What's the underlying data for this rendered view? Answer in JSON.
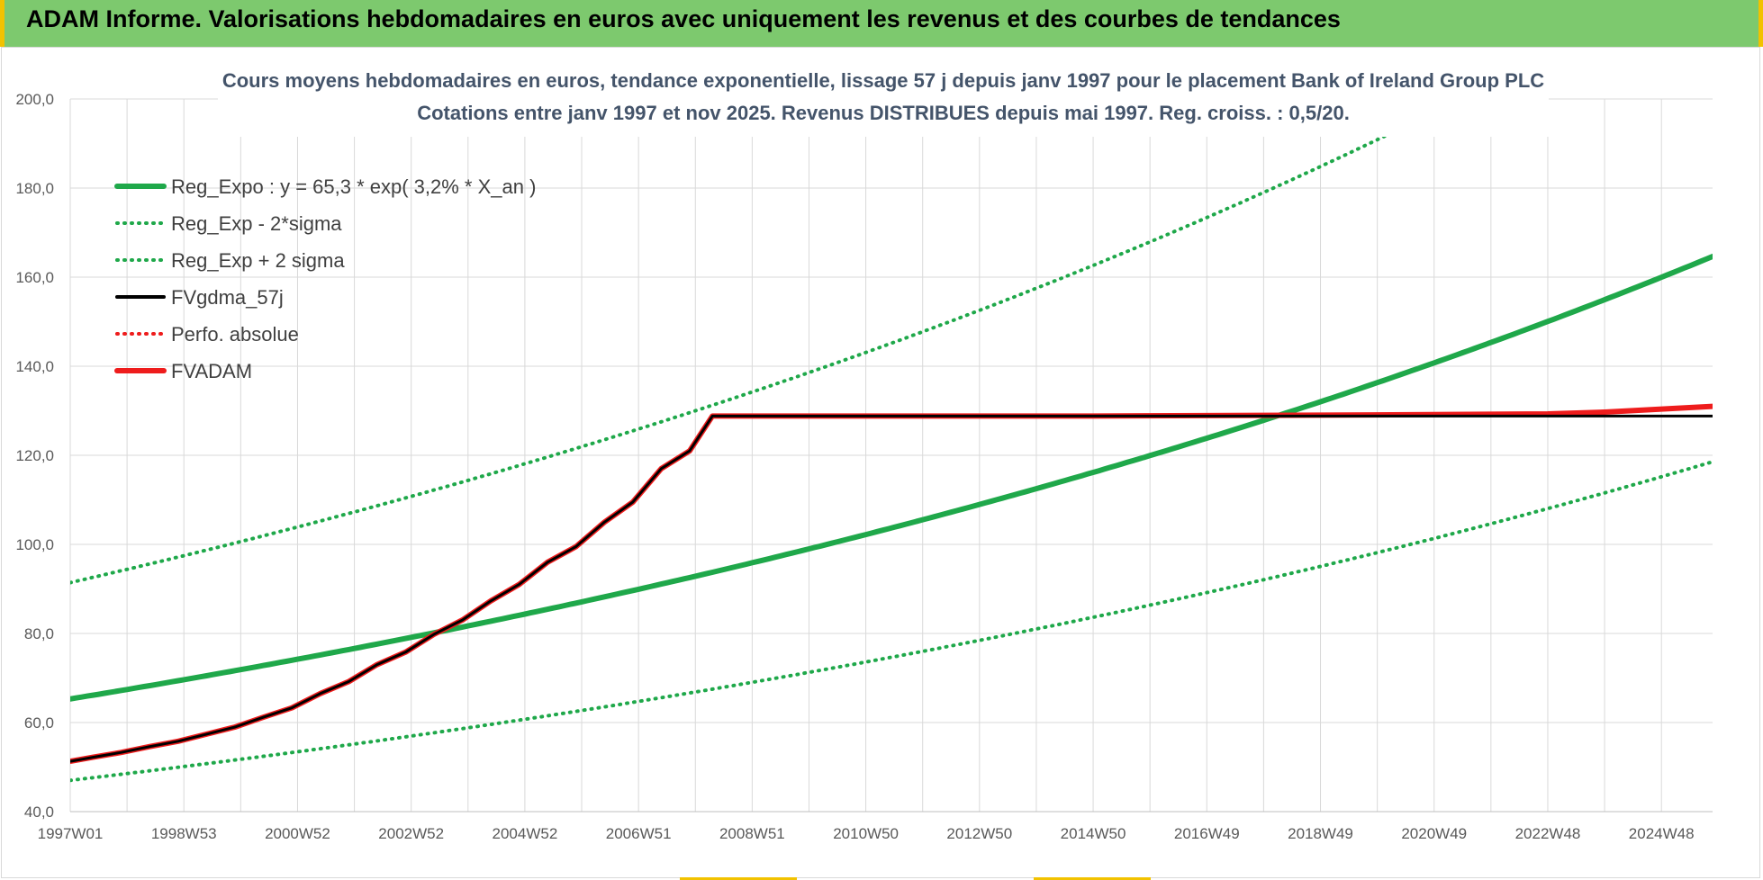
{
  "header": {
    "title": "ADAM Informe. Valorisations hebdomadaires en euros avec uniquement les revenus et des courbes de tendances"
  },
  "colors": {
    "banner": "#7dc96e",
    "trend_green": "#1fa84a",
    "fv_black": "#000000",
    "adam_red": "#ee1c1c",
    "grid": "#d9d9d9",
    "axis_text": "#595959",
    "title_text": "#44546a"
  },
  "chart_data": {
    "type": "line",
    "title": "Cours moyens hebdomadaires en euros, tendance exponentielle, lissage 57 j depuis janv 1997 pour le placement Bank of Ireland Group PLC",
    "subtitle": "Cotations entre janv 1997 et nov 2025. Revenus DISTRIBUES depuis mai 1997. Reg. croiss. : 0,5/20.",
    "xlabel": "",
    "ylabel": "",
    "x_range": [
      1997.0,
      2025.9
    ],
    "ylim": [
      40,
      200
    ],
    "y_ticks": [
      "40,0",
      "60,0",
      "80,0",
      "100,0",
      "120,0",
      "140,0",
      "160,0",
      "180,0",
      "200,0"
    ],
    "x_ticks": [
      "1997W01",
      "1998W53",
      "2000W52",
      "2002W52",
      "2004W52",
      "2006W51",
      "2008W51",
      "2010W50",
      "2012W50",
      "2014W50",
      "2016W49",
      "2018W49",
      "2020W49",
      "2022W48",
      "2024W48"
    ],
    "x_tick_years": [
      1997.0,
      1999.0,
      2001.0,
      2003.0,
      2005.0,
      2007.0,
      2009.0,
      2011.0,
      2013.0,
      2015.0,
      2017.0,
      2019.0,
      2021.0,
      2023.0,
      2025.0
    ],
    "grid": true,
    "legend_position": "top-left",
    "regression": {
      "a": 65.3,
      "rate_pct": 3.2,
      "lower_factor": 0.72,
      "upper_factor": 1.4
    },
    "series": [
      {
        "name": "Reg_Expo : y = 65,3 * exp( 3,2% *  X_an )",
        "style": "solid",
        "color": "#1fa84a",
        "kind": "trend"
      },
      {
        "name": "Reg_Exp - 2*sigma",
        "style": "dotted",
        "color": "#1fa84a",
        "kind": "lower"
      },
      {
        "name": "Reg_Exp + 2 sigma",
        "style": "dotted",
        "color": "#1fa84a",
        "kind": "upper"
      },
      {
        "name": "FVgdma_57j",
        "style": "solid",
        "color": "#000000",
        "kind": "fv",
        "x": [
          1997.0,
          1997.4,
          1997.9,
          1998.4,
          1998.9,
          1999.4,
          1999.9,
          2000.4,
          2000.9,
          2001.4,
          2001.9,
          2002.4,
          2002.9,
          2003.4,
          2003.9,
          2004.4,
          2004.9,
          2005.4,
          2005.9,
          2006.4,
          2006.9,
          2007.4,
          2007.9,
          2008.3,
          2025.9
        ],
        "values": [
          51.3,
          52.2,
          53.3,
          54.6,
          55.8,
          57.4,
          59.0,
          61.2,
          63.3,
          66.5,
          69.2,
          73.0,
          75.8,
          79.8,
          83.0,
          87.3,
          91.0,
          96.0,
          99.5,
          105.0,
          109.5,
          117.0,
          121.0,
          128.8,
          128.8
        ]
      },
      {
        "name": "Perfo. absolue",
        "style": "dotted",
        "color": "#ee1c1c",
        "kind": "hidden"
      },
      {
        "name": "FVADAM",
        "style": "solid",
        "color": "#ee1c1c",
        "kind": "adam",
        "x": [
          1997.0,
          1997.4,
          1997.9,
          1998.4,
          1998.9,
          1999.4,
          1999.9,
          2000.4,
          2000.9,
          2001.4,
          2001.9,
          2002.4,
          2002.9,
          2003.4,
          2003.9,
          2004.4,
          2004.9,
          2005.4,
          2005.9,
          2006.4,
          2006.9,
          2007.4,
          2007.9,
          2008.3,
          2015.0,
          2019.0,
          2023.0,
          2024.0,
          2025.9
        ],
        "values": [
          51.3,
          52.2,
          53.3,
          54.6,
          55.8,
          57.4,
          59.0,
          61.2,
          63.3,
          66.5,
          69.2,
          73.0,
          75.8,
          79.8,
          83.0,
          87.3,
          91.0,
          96.0,
          99.5,
          105.0,
          109.5,
          117.0,
          121.0,
          128.8,
          128.8,
          129.0,
          129.3,
          129.7,
          131.0
        ]
      }
    ]
  }
}
